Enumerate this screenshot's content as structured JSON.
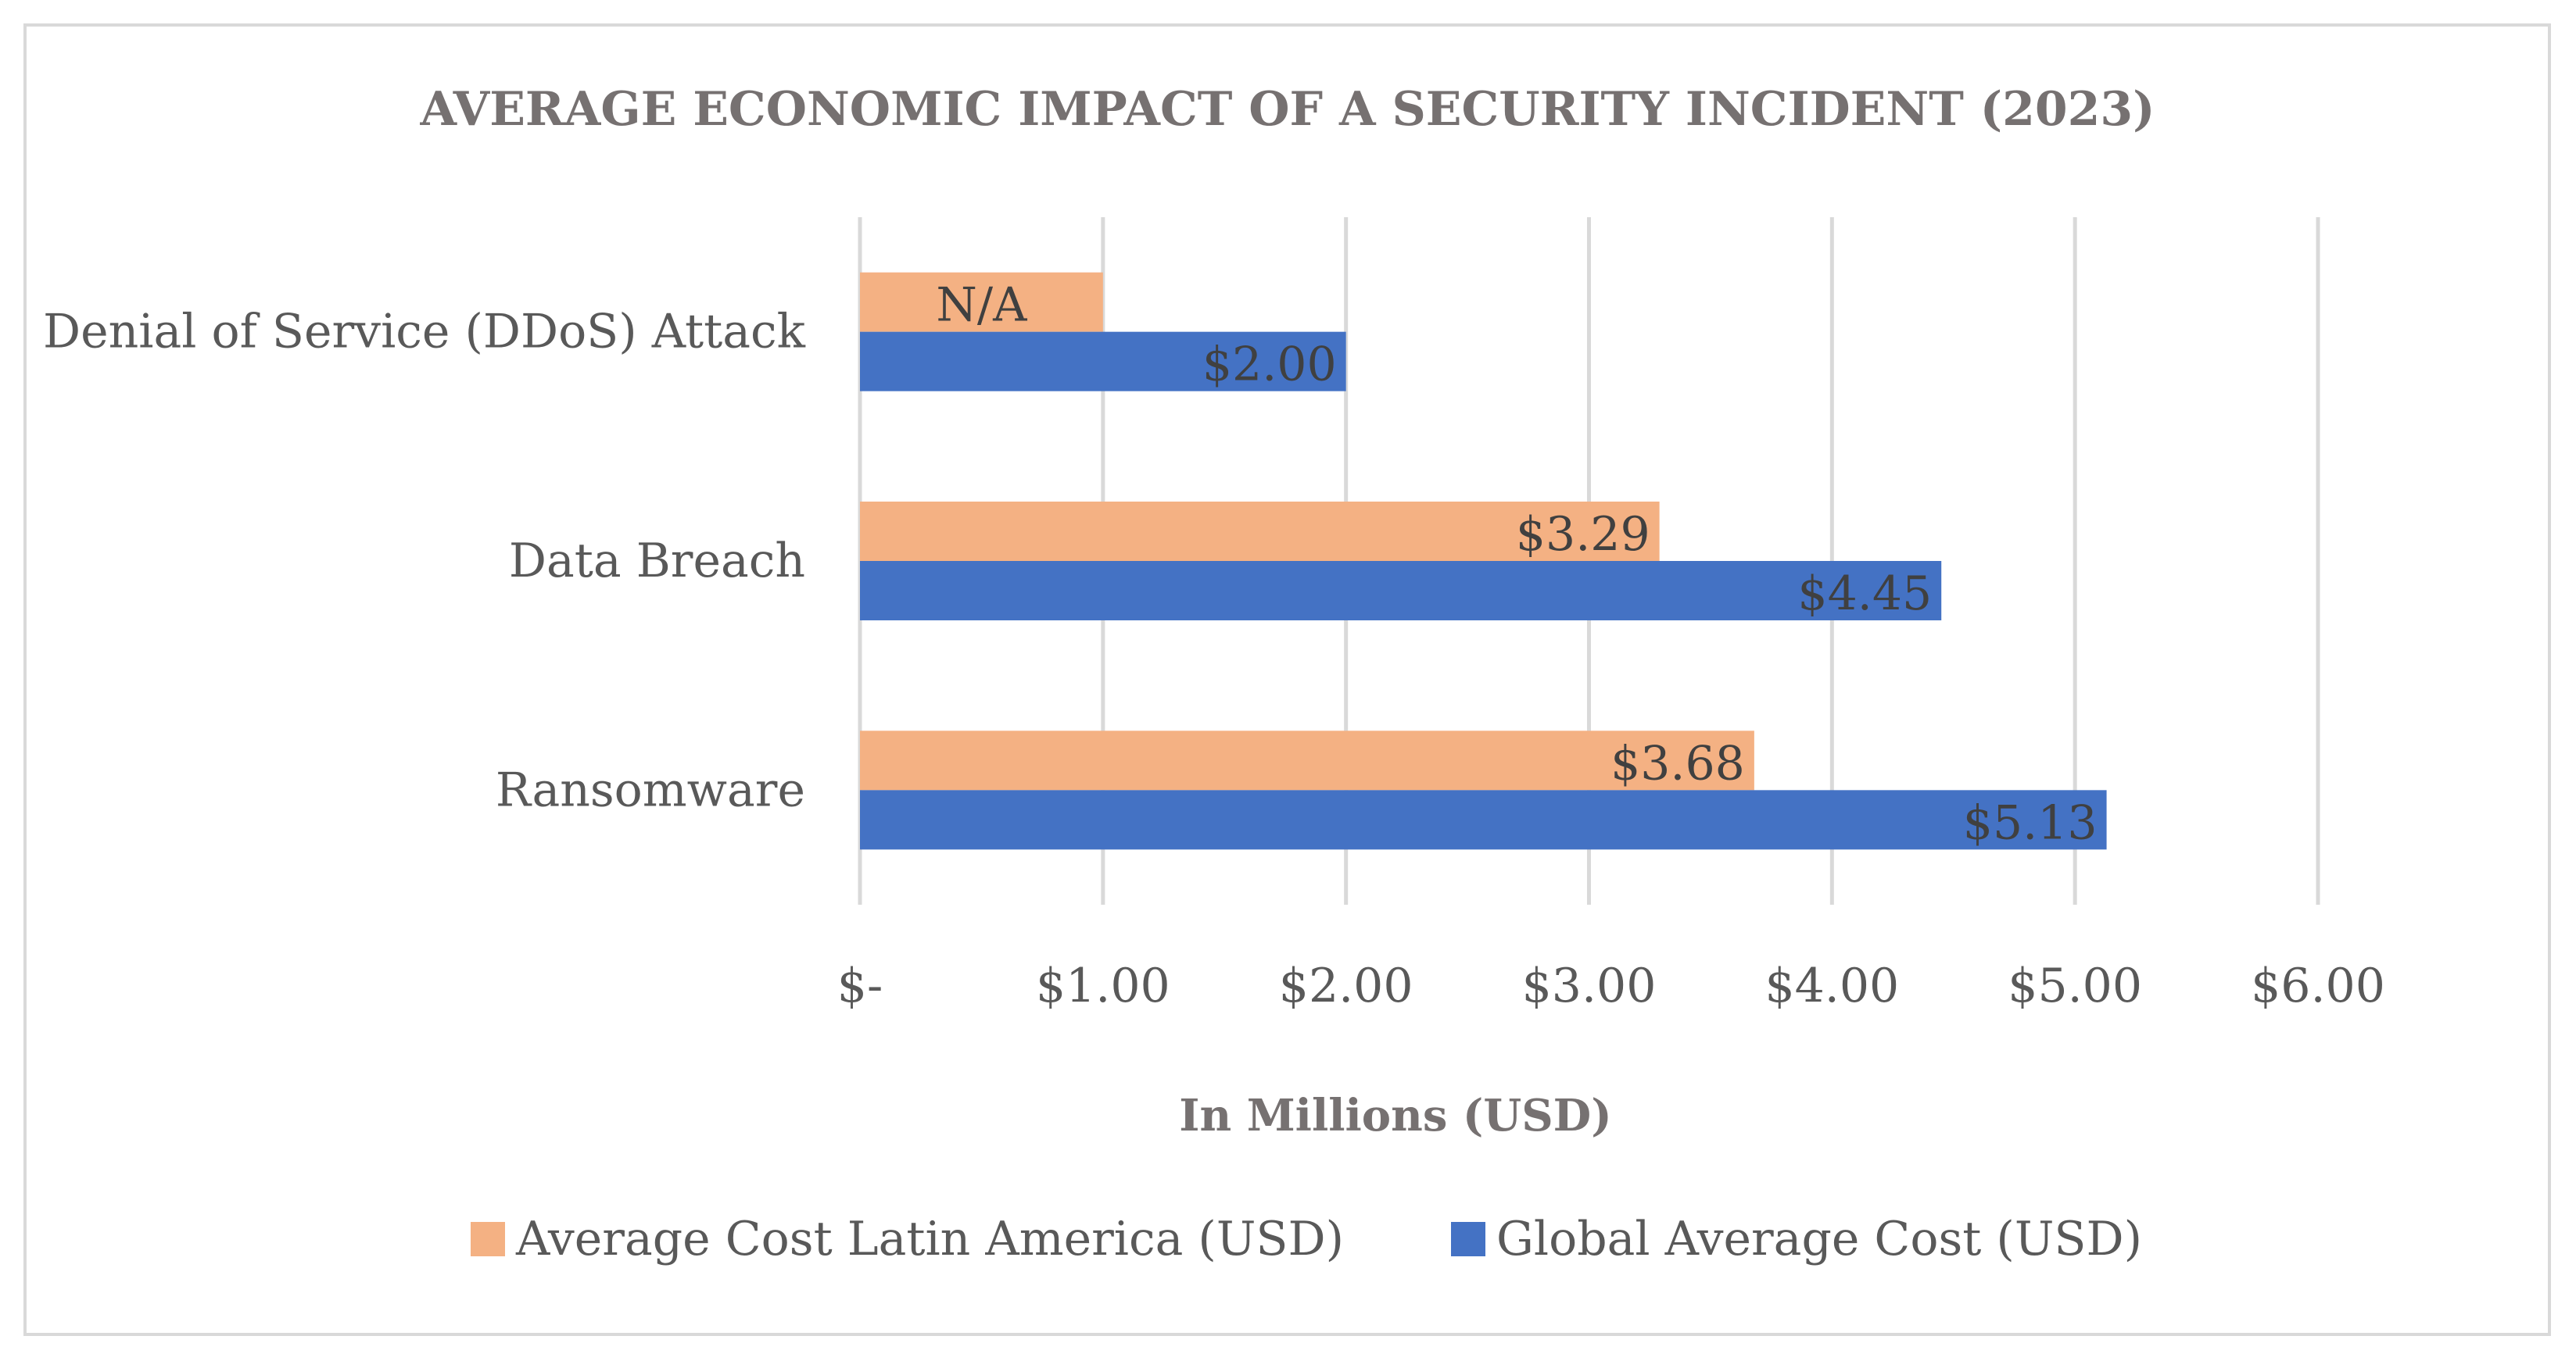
{
  "chart_data": {
    "type": "bar",
    "orientation": "horizontal",
    "title": "AVERAGE ECONOMIC IMPACT OF A SECURITY INCIDENT (2023)",
    "xlabel": "In Millions (USD)",
    "ylabel": "",
    "categories": [
      "Denial of Service (DDoS) Attack",
      "Data Breach",
      "Ransomware"
    ],
    "series": [
      {
        "name": "Average Cost Latin America (USD)",
        "color": "#f4b183",
        "values": [
          1.0,
          3.29,
          3.68
        ],
        "labels": [
          "N/A",
          "$3.29",
          "$3.68"
        ]
      },
      {
        "name": "Global Average Cost (USD)",
        "color": "#4472c4",
        "values": [
          2.0,
          4.45,
          5.13
        ],
        "labels": [
          "$2.00",
          "$4.45",
          "$5.13"
        ]
      }
    ],
    "xlim": [
      0,
      6
    ],
    "ticks": [
      0,
      1,
      2,
      3,
      4,
      5,
      6
    ],
    "tick_labels": [
      "$-",
      "$1.00",
      "$2.00",
      "$3.00",
      "$4.00",
      "$5.00",
      "$6.00"
    ],
    "grid": true,
    "gridline_color": "#d9d9d9",
    "legend_position": "bottom"
  }
}
